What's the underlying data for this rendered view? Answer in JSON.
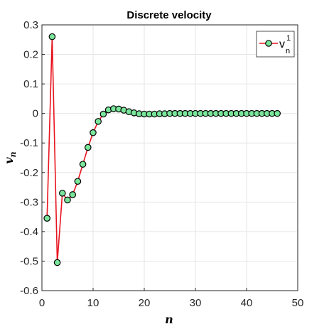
{
  "chart_data": {
    "type": "line",
    "title": "Discrete velocity",
    "xlabel": "n",
    "ylabel": "v_n",
    "xlim": [
      0,
      50
    ],
    "ylim": [
      -0.6,
      0.3
    ],
    "xticks": [
      0,
      10,
      20,
      30,
      40,
      50
    ],
    "xtick_labels": [
      "0",
      "10",
      "20",
      "30",
      "40",
      "50"
    ],
    "yticks": [
      -0.6,
      -0.5,
      -0.4,
      -0.3,
      -0.2,
      -0.1,
      0,
      0.1,
      0.2,
      0.3
    ],
    "ytick_labels": [
      "-0.6",
      "-0.5",
      "-0.4",
      "-0.3",
      "-0.2",
      "-0.1",
      "0",
      "0.1",
      "0.2",
      "0.3"
    ],
    "grid": true,
    "legend": {
      "placement": "top-right",
      "label_base": "v",
      "label_sup": "1",
      "label_sub": "n"
    },
    "series": [
      {
        "line_color": "#e8141e",
        "marker_face": "#7ae69b",
        "marker_edge": "#000000",
        "x": [
          1,
          2,
          3,
          4,
          5,
          6,
          7,
          8,
          9,
          10,
          11,
          12,
          13,
          14,
          15,
          16,
          17,
          18,
          19,
          20,
          21,
          22,
          23,
          24,
          25,
          26,
          27,
          28,
          29,
          30,
          31,
          32,
          33,
          34,
          35,
          36,
          37,
          38,
          39,
          40,
          41,
          42,
          43,
          44,
          45,
          46
        ],
        "values": [
          -0.355,
          0.26,
          -0.505,
          -0.27,
          -0.293,
          -0.275,
          -0.23,
          -0.172,
          -0.115,
          -0.065,
          -0.027,
          -0.002,
          0.012,
          0.016,
          0.015,
          0.011,
          0.006,
          0.002,
          -0.001,
          -0.002,
          -0.002,
          -0.002,
          -0.001,
          -0.001,
          0,
          0,
          0,
          0,
          0,
          0,
          0,
          0,
          0,
          0,
          0,
          0,
          0,
          0,
          0,
          0,
          0,
          0,
          0,
          0,
          0,
          0
        ]
      }
    ]
  }
}
